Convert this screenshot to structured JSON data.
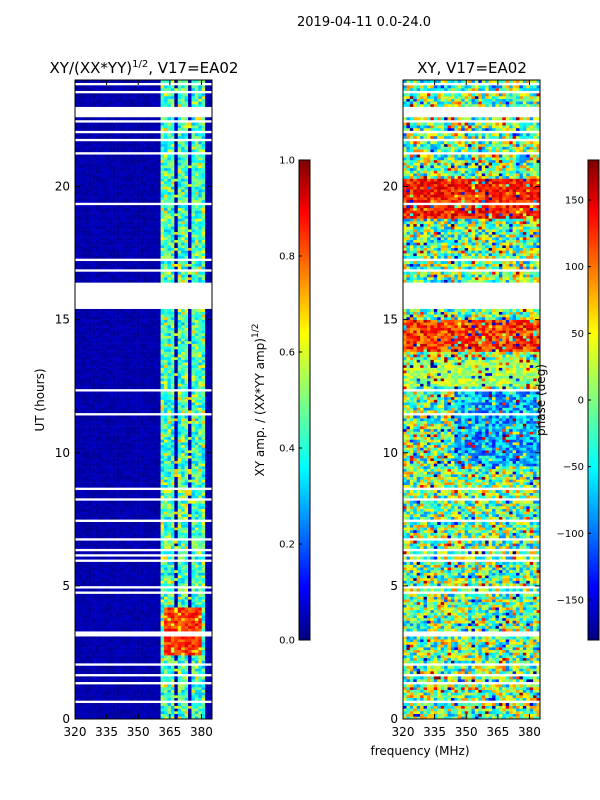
{
  "suptitle": "2019-04-11 0.0-24.0",
  "xlabel_shared": "frequency (MHz)",
  "chart_data": [
    {
      "type": "heatmap",
      "title": "XY/(XX*YY)^1/2, V17=EA02",
      "title_main": "XY/(XX*YY)",
      "title_exp": "1/2",
      "title_tail": ", V17=EA02",
      "xlabel": "",
      "ylabel": "UT (hours)",
      "xlim": [
        320,
        385
      ],
      "ylim": [
        0,
        24
      ],
      "xticks": [
        320,
        335,
        350,
        365,
        380
      ],
      "yticks": [
        0,
        5,
        10,
        15,
        20
      ],
      "colormap": "jet",
      "colorbar": {
        "label_main": "XY amp. / (XX*YY amp)",
        "label_exp": "1/2",
        "range": [
          0.0,
          1.0
        ],
        "ticks": [
          "0.0",
          "0.2",
          "0.4",
          "0.6",
          "0.8",
          "1.0"
        ]
      },
      "notes": "Mostly low amplitude (~0) at 320-360 MHz; elevated amplitude (0.3-0.6) bands near 362-382 MHz; higher (~0.8-0.9) near 362-380 MHz for 2.5-4 h. Horizontal white gaps = flagged data."
    },
    {
      "type": "heatmap",
      "title": "XY, V17=EA02",
      "xlabel": "frequency (MHz)",
      "ylabel": "",
      "xlim": [
        320,
        385
      ],
      "ylim": [
        0,
        24
      ],
      "xticks": [
        320,
        335,
        350,
        365,
        380
      ],
      "yticks": [
        0,
        5,
        10,
        15,
        20
      ],
      "colormap": "jet",
      "colorbar": {
        "label": "phase (deg)",
        "range": [
          -180,
          180
        ],
        "ticks": [
          "150",
          "100",
          "50",
          "0",
          "−50",
          "−100",
          "−150"
        ]
      },
      "notes": "Noisy phase across all frequencies; red/orange (+100 to +150 deg) bands near 19-20 h, 14-15 h; blue (-150 deg) bands near 10-12 h."
    }
  ],
  "colors": {
    "jet": [
      "#00007f",
      "#0000ff",
      "#007fff",
      "#00ffff",
      "#7fff7f",
      "#ffff00",
      "#ff7f00",
      "#ff0000",
      "#7f0000"
    ]
  }
}
